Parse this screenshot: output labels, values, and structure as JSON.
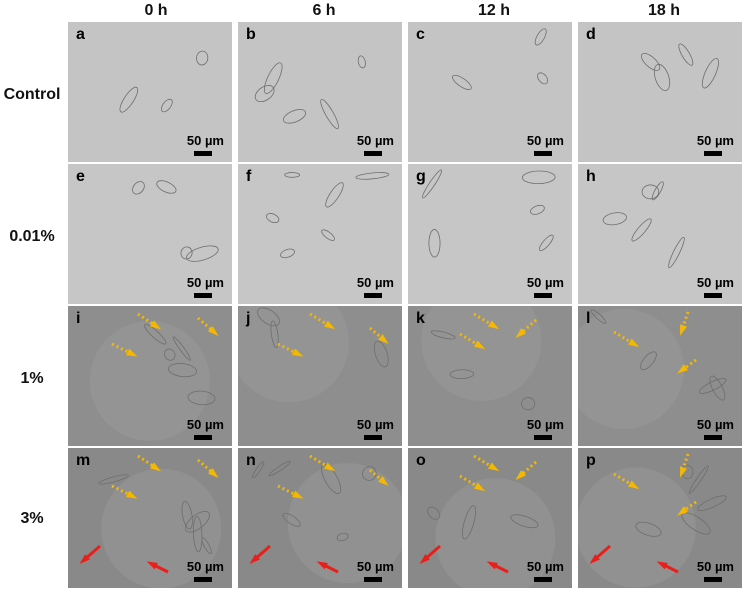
{
  "columns": [
    "0 h",
    "6 h",
    "12 h",
    "18 h"
  ],
  "rows": [
    {
      "label": "Control",
      "letters": [
        "a",
        "b",
        "c",
        "d"
      ],
      "background": "#c4c4c4",
      "markers": [
        [],
        [],
        [],
        []
      ]
    },
    {
      "label": "0.01%",
      "letters": [
        "e",
        "f",
        "g",
        "h"
      ],
      "background": "#c6c6c6",
      "markers": [
        [],
        [],
        [],
        []
      ]
    },
    {
      "label": "1%",
      "letters": [
        "i",
        "j",
        "k",
        "l"
      ],
      "background": "#8e8e8e",
      "markers": [
        [
          "yellow",
          "yellow",
          "yellow"
        ],
        [
          "yellow",
          "yellow",
          "yellow"
        ],
        [
          "yellow",
          "yellow",
          "yellow"
        ],
        [
          "yellow",
          "yellow",
          "yellow"
        ]
      ]
    },
    {
      "label": "3%",
      "letters": [
        "m",
        "n",
        "o",
        "p"
      ],
      "background": "#898989",
      "markers": [
        [
          "yellow",
          "yellow",
          "yellow",
          "red",
          "red"
        ],
        [
          "yellow",
          "yellow",
          "yellow",
          "red",
          "red"
        ],
        [
          "yellow",
          "yellow",
          "yellow",
          "red",
          "red"
        ],
        [
          "yellow",
          "yellow",
          "yellow",
          "red",
          "red"
        ]
      ]
    }
  ],
  "scale_label": "50 µm",
  "colors": {
    "yellow_arrow": "#f5b800",
    "red_arrow": "#e8201c"
  }
}
